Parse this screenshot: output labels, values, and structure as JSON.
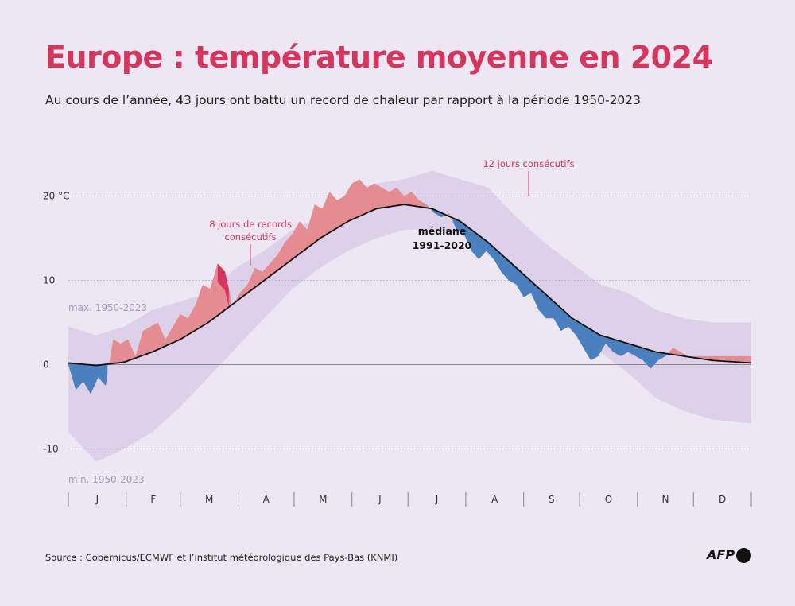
{
  "title": "Europe : température moyenne en 2024",
  "subtitle": "Au cours de l’année, 43 jours ont battu un record de chaleur par rapport à la période 1950-2023",
  "source": "Source : Copernicus/ECMWF et l’institut météorologique des Pays-Bas (KNMI)",
  "logo_text": "AFP",
  "colors": {
    "background": "#ece7f2",
    "range_band": "#ddd1ea",
    "warm": "#e58c92",
    "cold": "#4a80bd",
    "record": "#d6365e",
    "median": "#111111",
    "title": "#d6365e"
  },
  "chart_data": {
    "type": "area",
    "title": "Europe : température moyenne en 2024",
    "xlabel": "",
    "ylabel": "°C",
    "x_months": [
      "J",
      "F",
      "M",
      "A",
      "M",
      "J",
      "J",
      "A",
      "S",
      "O",
      "N",
      "D"
    ],
    "y_ticks": [
      20,
      10,
      0,
      -10
    ],
    "y_tick_labels": [
      "20 °C",
      "10",
      "0",
      "-10"
    ],
    "ylim": [
      -14,
      23
    ],
    "grid": true,
    "x_units": "day of year (0 = 1 Jan 2024, 366 = 31 Dec 2024)",
    "series": [
      {
        "name": "max. 1950-2023",
        "x": [
          0,
          15,
          30,
          45,
          60,
          75,
          90,
          105,
          120,
          135,
          150,
          165,
          180,
          195,
          210,
          225,
          240,
          255,
          270,
          285,
          300,
          315,
          330,
          345,
          366
        ],
        "values": [
          4.5,
          3.5,
          4.5,
          6.5,
          7.5,
          8.5,
          11.5,
          13.5,
          16.0,
          17.5,
          20.5,
          21.5,
          22.0,
          23.0,
          22.0,
          21.0,
          17.5,
          14.5,
          12.0,
          9.5,
          8.5,
          6.5,
          5.5,
          5.0,
          5.0
        ]
      },
      {
        "name": "min. 1950-2023",
        "x": [
          0,
          15,
          30,
          45,
          60,
          75,
          90,
          105,
          120,
          135,
          150,
          165,
          180,
          195,
          210,
          225,
          240,
          255,
          270,
          285,
          300,
          315,
          330,
          345,
          366
        ],
        "values": [
          -8.0,
          -11.5,
          -10.0,
          -8.0,
          -5.0,
          -1.5,
          2.0,
          5.5,
          9.0,
          11.5,
          13.5,
          15.0,
          16.0,
          16.0,
          15.5,
          13.0,
          10.0,
          6.5,
          4.0,
          1.5,
          -1.0,
          -4.0,
          -5.5,
          -6.5,
          -7.0
        ]
      },
      {
        "name": "médiane 1991-2020",
        "x": [
          0,
          15,
          30,
          45,
          60,
          75,
          90,
          105,
          120,
          135,
          150,
          165,
          180,
          195,
          210,
          225,
          240,
          255,
          270,
          285,
          300,
          315,
          330,
          345,
          366
        ],
        "values": [
          0.2,
          -0.1,
          0.3,
          1.5,
          3.0,
          5.0,
          7.5,
          10.0,
          12.5,
          15.0,
          17.0,
          18.5,
          19.0,
          18.5,
          17.0,
          14.5,
          11.5,
          8.5,
          5.5,
          3.5,
          2.5,
          1.5,
          1.0,
          0.5,
          0.2
        ]
      },
      {
        "name": "2024",
        "x": [
          0,
          4,
          8,
          12,
          16,
          20,
          24,
          28,
          32,
          36,
          40,
          44,
          48,
          52,
          56,
          60,
          64,
          68,
          72,
          76,
          80,
          84,
          88,
          92,
          96,
          100,
          104,
          108,
          112,
          116,
          120,
          124,
          128,
          132,
          136,
          140,
          144,
          148,
          152,
          156,
          160,
          164,
          168,
          172,
          176,
          180,
          184,
          188,
          192,
          196,
          200,
          204,
          208,
          212,
          216,
          220,
          224,
          228,
          232,
          236,
          240,
          244,
          248,
          252,
          256,
          260,
          264,
          268,
          272,
          276,
          280,
          284,
          288,
          292,
          296,
          300,
          304,
          308,
          312,
          316,
          320,
          324,
          328,
          332,
          336,
          340,
          344,
          348,
          352,
          356,
          360,
          366
        ],
        "values": [
          0.0,
          -3.0,
          -2.0,
          -3.5,
          -1.5,
          -2.5,
          3.0,
          2.5,
          3.0,
          1.0,
          4.0,
          4.5,
          5.0,
          3.0,
          4.5,
          6.0,
          5.5,
          7.0,
          9.5,
          9.0,
          12.0,
          11.0,
          7.0,
          8.5,
          9.5,
          11.5,
          11.0,
          12.0,
          13.0,
          14.5,
          15.5,
          17.0,
          16.0,
          19.0,
          18.5,
          20.5,
          19.5,
          20.0,
          21.5,
          22.0,
          21.0,
          21.5,
          21.0,
          20.5,
          21.0,
          20.0,
          20.5,
          19.5,
          19.0,
          18.0,
          17.5,
          18.0,
          16.0,
          15.5,
          13.5,
          12.5,
          13.5,
          12.5,
          11.0,
          10.0,
          9.5,
          8.0,
          8.5,
          6.5,
          5.5,
          5.5,
          4.0,
          4.5,
          3.5,
          2.0,
          0.5,
          1.0,
          2.5,
          1.5,
          1.0,
          1.5,
          1.0,
          0.5,
          -0.5,
          0.5,
          1.0,
          2.0,
          1.5,
          1.0,
          1.0,
          1.0,
          1.0,
          1.0,
          1.0,
          1.0,
          1.0,
          1.0
        ]
      }
    ],
    "record_periods": [
      {
        "x": [
          80,
          86
        ],
        "label": "8 jours de records consécutifs"
      },
      {
        "x": [
          226,
          232
        ],
        "label": "12 jours consécutifs"
      }
    ],
    "annotations": {
      "max": "max. 1950-2023",
      "min": "min. 1950-2023",
      "median": [
        "médiane",
        "1991-2020"
      ],
      "records_8": [
        "8 jours de records",
        "consécutifs"
      ],
      "records_12": "12 jours consécutifs"
    }
  }
}
